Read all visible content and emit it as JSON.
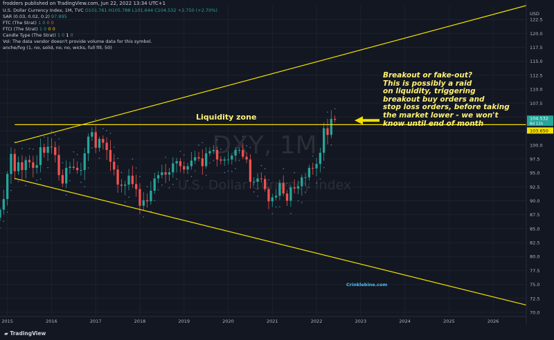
{
  "top_bar": {
    "publisher": "frodders published on TradingView.com, Jun 22, 2022 13:34 UTC+1"
  },
  "legend": {
    "symbol_line": {
      "name": "U.S. Dollar Currency Index, 1M, TVC",
      "ohlc": "O101.761 H105.788 L101.644 C104.532 +2.750 (+2.70%)"
    },
    "sar": {
      "label": "SAR (0.03, 0.02, 0.2)",
      "value": "97.895"
    },
    "ftc": {
      "label": "FTC (The Strat)",
      "values": [
        "1",
        "0",
        "0",
        "0"
      ]
    },
    "ftci": {
      "label": "FTCI (The Strat)",
      "values": [
        "1",
        "0",
        "0",
        "0"
      ]
    },
    "candle_type": {
      "label": "Candle Type (The Strat)",
      "values": [
        "1",
        "0",
        "1",
        "0"
      ]
    },
    "vol_note": "Vol: The data vendor doesn't provide volume data for this symbol.",
    "fvg": "anche/fvg (1, no, solid, no, no, wicks, full fill, 50)"
  },
  "annotations": {
    "note_lines": [
      "Breakout or fake-out?",
      "This is possibly a raid",
      "on liquidity, triggering",
      "breakout buy orders and",
      "stop loss orders, before taking",
      "the market lower - we won't",
      "know until end of month"
    ],
    "liquidity_zone": "Liquidity zone",
    "watermark_site": "Crinklebine.com",
    "watermark_symbol": "DXY, 1M",
    "watermark_name": "U.S. Dollar Currency Index"
  },
  "price_labels": {
    "last": "104.532",
    "countdown": "8d 11h",
    "level": "103.650"
  },
  "footer": {
    "logo": "TradingView"
  },
  "colors": {
    "up": "#26a69a",
    "down": "#ef5350",
    "trendline": "#f5e000",
    "background": "#131722"
  },
  "chart_data": {
    "type": "candlestick",
    "currency": "USD",
    "x_ticks": [
      "2015",
      "2016",
      "2017",
      "2018",
      "2019",
      "2020",
      "2021",
      "2022",
      "2023",
      "2024",
      "2025",
      "2026"
    ],
    "y_ticks": [
      70.0,
      72.5,
      75.0,
      77.5,
      80.0,
      82.5,
      85.0,
      87.5,
      90.0,
      92.5,
      95.0,
      97.5,
      100.0,
      102.5,
      105.0,
      107.5,
      110.0,
      112.5,
      115.0,
      117.5,
      120.0,
      122.5
    ],
    "ylim": [
      69.5,
      125.0
    ],
    "xlim": [
      "2014-11",
      "2026-10"
    ],
    "start": "2014-11",
    "closes": [
      88.4,
      90.3,
      94.8,
      98.4,
      95.3,
      96.9,
      95.5,
      97.3,
      96.9,
      95.9,
      96.4,
      99.6,
      98.6,
      99.7,
      99.6,
      98.2,
      94.6,
      93.1,
      95.9,
      96.1,
      95.9,
      95.5,
      95.5,
      98.5,
      101.5,
      102.3,
      99.5,
      101.1,
      100.4,
      99.1,
      97.0,
      95.6,
      92.9,
      92.7,
      92.9,
      94.5,
      93.0,
      92.1,
      89.1,
      90.1,
      89.9,
      91.8,
      94.0,
      94.6,
      95.1,
      94.7,
      95.1,
      96.7,
      97.1,
      96.2,
      95.6,
      96.2,
      97.2,
      97.8,
      97.6,
      96.2,
      98.5,
      98.9,
      99.1,
      97.4,
      97.2,
      97.4,
      97.4,
      98.1,
      99.1,
      99.1,
      97.9,
      97.4,
      93.4,
      93.4,
      94.0,
      93.9,
      92.1,
      89.9,
      90.6,
      90.9,
      93.2,
      91.3,
      90.0,
      92.4,
      92.2,
      92.6,
      94.2,
      94.2,
      95.9,
      95.8,
      96.6,
      98.6,
      103.0,
      101.8,
      104.69,
      104.53
    ],
    "series": [
      {
        "name": "DXY"
      }
    ],
    "trendlines": [
      {
        "from": [
          "2015-03",
          100.4
        ],
        "to": [
          "2026-10",
          125.0
        ]
      },
      {
        "from": [
          "2015-03",
          94.0
        ],
        "to": [
          "2026-10",
          71.3
        ]
      },
      {
        "from": [
          "2015-03",
          103.65
        ],
        "to": [
          "2026-10",
          103.65
        ]
      }
    ],
    "arrow_at_price": 104.4,
    "grid": true
  }
}
